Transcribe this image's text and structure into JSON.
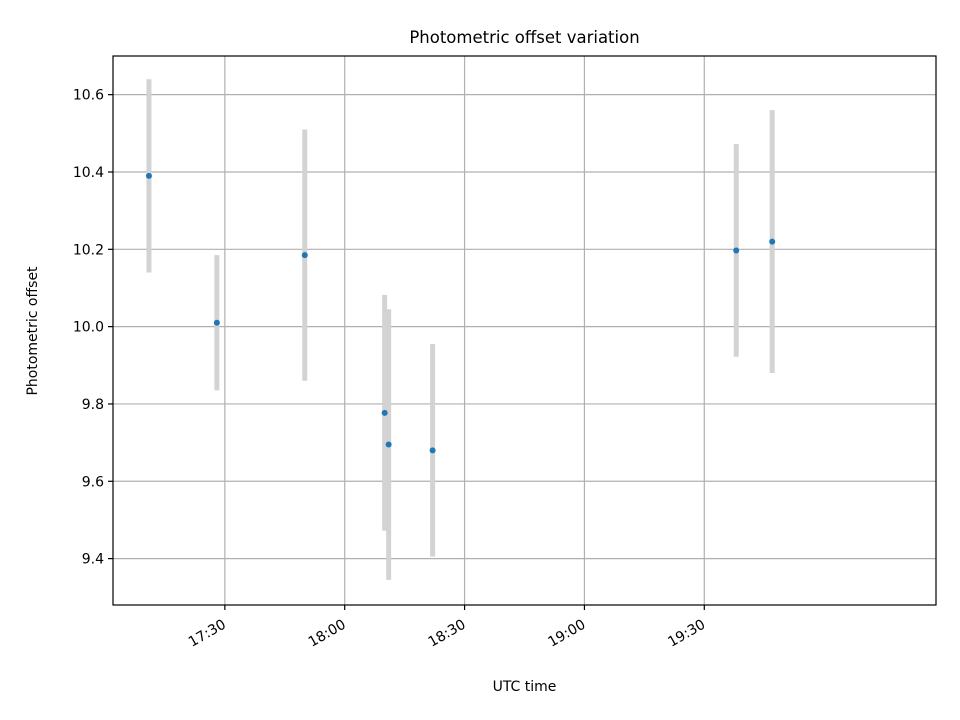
{
  "chart_data": {
    "type": "scatter",
    "title": "Photometric offset variation",
    "xlabel": "UTC time",
    "ylabel": "Photometric offset",
    "x_type": "time",
    "xlim": [
      "17:02",
      "20:28"
    ],
    "ylim": [
      9.28,
      10.7
    ],
    "x_ticks": [
      "17:30",
      "18:00",
      "18:30",
      "19:00",
      "19:30"
    ],
    "y_ticks": [
      9.4,
      9.6,
      9.8,
      10.0,
      10.2,
      10.4,
      10.6
    ],
    "y_tick_labels": [
      "9.4",
      "9.6",
      "9.8",
      "10.0",
      "10.2",
      "10.4",
      "10.6"
    ],
    "grid": true,
    "point_color": "#1f77b4",
    "errorbar_color": "#d3d3d3",
    "points": [
      {
        "x": "17:11",
        "y": 10.39,
        "err": 0.25
      },
      {
        "x": "17:28",
        "y": 10.01,
        "err": 0.175
      },
      {
        "x": "17:50",
        "y": 10.185,
        "err": 0.325
      },
      {
        "x": "18:10",
        "y": 9.777,
        "err": 0.305
      },
      {
        "x": "18:11",
        "y": 9.695,
        "err": 0.35
      },
      {
        "x": "18:22",
        "y": 9.68,
        "err": 0.275
      },
      {
        "x": "19:38",
        "y": 10.197,
        "err": 0.275
      },
      {
        "x": "19:47",
        "y": 10.22,
        "err": 0.34
      }
    ]
  }
}
